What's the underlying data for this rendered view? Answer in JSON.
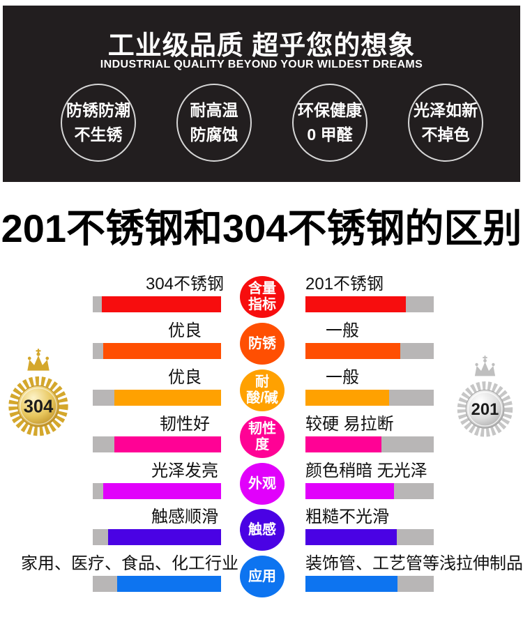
{
  "hero": {
    "bg_color": "#221e1f",
    "title": "工业级品质 超乎您的想象",
    "subtitle": "INDUSTRIAL QUALITY BEYOND YOUR WILDEST DREAMS",
    "features": [
      {
        "line1": "防锈防潮",
        "line2": "不生锈"
      },
      {
        "line1": "耐高温",
        "line2": "防腐蚀"
      },
      {
        "line1": "环保健康",
        "line2": "0 甲醛"
      },
      {
        "line1": "光泽如新",
        "line2": "不掉色"
      }
    ]
  },
  "section_title": "201不锈钢和304不锈钢的区别",
  "medals": {
    "left": {
      "value": "304",
      "theme": "gold"
    },
    "right": {
      "value": "201",
      "theme": "silver"
    }
  },
  "comparison": {
    "track_color": "#b8b6b6",
    "rows": [
      {
        "category": [
          "含量",
          "指标"
        ],
        "color": "#f70d0e",
        "left": {
          "label": "304不锈钢",
          "fill_percent": 93
        },
        "right": {
          "label": "201不锈钢",
          "fill_percent": 78
        }
      },
      {
        "category": [
          "防锈"
        ],
        "color": "#ff4f02",
        "left": {
          "label": "优良",
          "fill_percent": 92
        },
        "right": {
          "label": "一般",
          "fill_percent": 74
        }
      },
      {
        "category": [
          "耐",
          "酸/碱"
        ],
        "color": "#ffa101",
        "left": {
          "label": "优良",
          "fill_percent": 83
        },
        "right": {
          "label": "一般",
          "fill_percent": 65
        }
      },
      {
        "category": [
          "韧性",
          "度"
        ],
        "color": "#ff0295",
        "left": {
          "label": "韧性好",
          "fill_percent": 83
        },
        "right": {
          "label": "较硬 易拉断",
          "fill_percent": 59
        }
      },
      {
        "category": [
          "外观"
        ],
        "color": "#e101fb",
        "left": {
          "label": "光泽发亮",
          "fill_percent": 92
        },
        "right": {
          "label": "颜色稍暗 无光泽",
          "fill_percent": 69
        }
      },
      {
        "category": [
          "触感"
        ],
        "color": "#4a02e4",
        "left": {
          "label": "触感顺滑",
          "fill_percent": 88
        },
        "right": {
          "label": "粗糙不光滑",
          "fill_percent": 71
        }
      },
      {
        "category": [
          "应用"
        ],
        "color": "#0d74f0",
        "left": {
          "label": "家用、医疗、食品、化工行业",
          "fill_percent": 81
        },
        "right": {
          "label": "装饰管、工艺管等浅拉伸制品",
          "fill_percent": 72
        }
      }
    ]
  },
  "chart_data": {
    "type": "bar",
    "title": "201不锈钢和304不锈钢的区别",
    "categories": [
      "含量指标",
      "防锈",
      "耐酸/碱",
      "韧性度",
      "外观",
      "触感",
      "应用"
    ],
    "series": [
      {
        "name": "304不锈钢",
        "labels": [
          "304不锈钢",
          "优良",
          "优良",
          "韧性好",
          "光泽发亮",
          "触感顺滑",
          "家用、医疗、食品、化工行业"
        ],
        "fill_percent": [
          93,
          92,
          83,
          83,
          92,
          88,
          81
        ]
      },
      {
        "name": "201不锈钢",
        "labels": [
          "201不锈钢",
          "一般",
          "一般",
          "较硬 易拉断",
          "颜色稍暗 无光泽",
          "粗糙不光滑",
          "装饰管、工艺管等浅拉伸制品"
        ],
        "fill_percent": [
          78,
          74,
          65,
          59,
          69,
          71,
          72
        ]
      }
    ],
    "row_colors": [
      "#f70d0e",
      "#ff4f02",
      "#ffa101",
      "#ff0295",
      "#e101fb",
      "#4a02e4",
      "#0d74f0"
    ],
    "legend_position": "none",
    "grid": false
  }
}
